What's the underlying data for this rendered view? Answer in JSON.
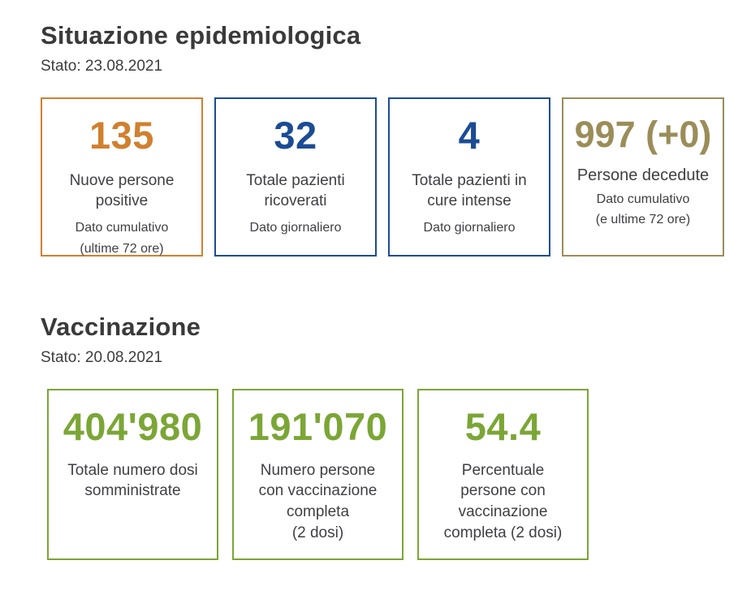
{
  "epidemiology": {
    "title": "Situazione epidemiologica",
    "status": "Stato: 23.08.2021",
    "cards": [
      {
        "value": "135",
        "label": "Nuove persone\npositive",
        "sub": "Dato cumulativo\n(ultime 72 ore)",
        "accent": "#d0802f"
      },
      {
        "value": "32",
        "label": "Totale pazienti\nricoverati",
        "sub": "Dato giornaliero",
        "accent": "#1b4c94"
      },
      {
        "value": "4",
        "label": "Totale pazienti in\ncure intense",
        "sub": "Dato giornaliero",
        "accent": "#1b4c94"
      },
      {
        "value": "997 (+0)",
        "label": "Persone decedute",
        "sub": "Dato cumulativo\n(e ultime 72 ore)",
        "accent": "#9a8d58"
      }
    ]
  },
  "vaccination": {
    "title": "Vaccinazione",
    "status": "Stato: 20.08.2021",
    "cards": [
      {
        "value": "404'980",
        "label": "Totale numero dosi\nsomministrate",
        "accent": "#7ba636"
      },
      {
        "value": "191'070",
        "label": "Numero persone\ncon vaccinazione\ncompleta\n(2 dosi)",
        "accent": "#7ba636"
      },
      {
        "value": "54.4",
        "label": "Percentuale\npersone con\nvaccinazione\ncompleta (2 dosi)",
        "accent": "#7ba636"
      }
    ]
  }
}
